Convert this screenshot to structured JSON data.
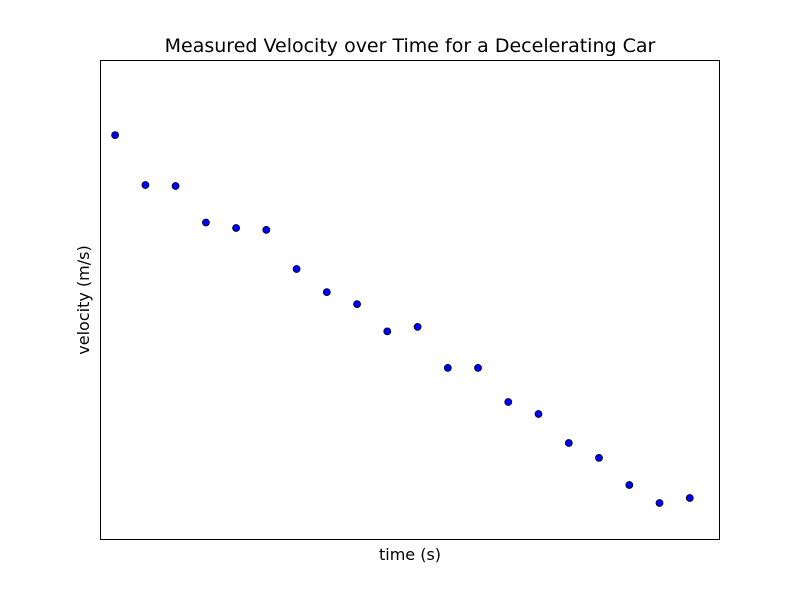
{
  "chart_data": {
    "type": "scatter",
    "title": "Measured Velocity over Time for a Decelerating Car",
    "xlabel": "time (s)",
    "ylabel": "velocity (m/s)",
    "x_ticks_visible": false,
    "y_ticks_visible": false,
    "grid": false,
    "xlim": [
      -0.5,
      20
    ],
    "ylim": [
      0,
      20
    ],
    "marker_color": "#0000ff",
    "marker_edge_color": "#000000",
    "series": [
      {
        "x": [
          0,
          1,
          2,
          3,
          4,
          5,
          6,
          7,
          8,
          9,
          10,
          11,
          12,
          13,
          14,
          15,
          16,
          17,
          18,
          19
        ],
        "y": [
          16.87,
          14.79,
          14.75,
          13.23,
          13.0,
          12.92,
          11.29,
          10.33,
          9.83,
          8.69,
          8.88,
          7.17,
          7.17,
          5.75,
          5.25,
          4.04,
          3.42,
          2.29,
          1.54,
          1.75
        ]
      }
    ]
  }
}
